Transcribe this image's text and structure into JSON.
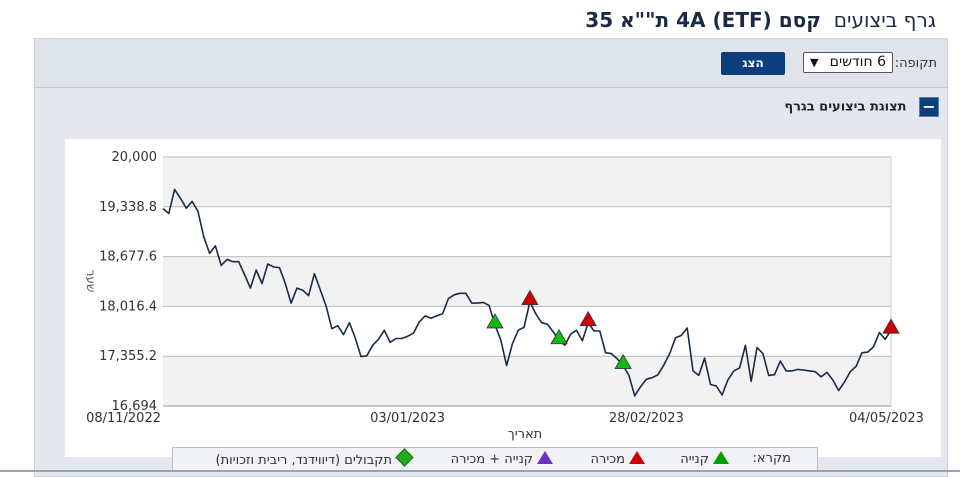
{
  "page": {
    "title_prefix": "גרף ביצועים",
    "title_main": "קסם (ETF) 4A ת\"\"א 35",
    "period_label": "תקופה:",
    "period_value": "6 חודשים",
    "show_button": "הצג",
    "section_title": "תצוגת ביצועים בגרף",
    "collapse_symbol": "−"
  },
  "legend": {
    "title": "מקרא:",
    "buy": "קנייה",
    "sell": "מכירה",
    "buy_sell": "קנייה + מכירה",
    "receipts": "תקבולים (דיווידנד, ריבית וזכויות)"
  },
  "colors": {
    "buy": "#11bb11",
    "sell": "#cc0000",
    "buy_sell": "#7030c0",
    "receipts": "#22aa22",
    "line": "#1a2a4a",
    "band": "#f2f2f2"
  },
  "chart_data": {
    "type": "line",
    "ylabel": "שער",
    "xlabel": "תאריך",
    "y_ticks": [
      "16,694",
      "17,355.2",
      "18,016.4",
      "18,677.6",
      "19,338.8",
      "20,000"
    ],
    "y_tick_values": [
      16694,
      17355.2,
      18016.4,
      18677.6,
      19338.8,
      20000
    ],
    "ylim": [
      16694,
      20000
    ],
    "x_ticks": [
      "08/11/2022",
      "03/01/2023",
      "28/02/2023",
      "04/05/2023"
    ],
    "x_tick_positions": [
      0,
      0.336,
      0.664,
      1
    ],
    "grid": true,
    "series": [
      {
        "values": [
          19315,
          19250,
          19570,
          19450,
          19320,
          19410,
          19280,
          18940,
          18720,
          18820,
          18560,
          18640,
          18610,
          18610,
          18440,
          18260,
          18500,
          18320,
          18580,
          18540,
          18530,
          18320,
          18060,
          18260,
          18230,
          18160,
          18450,
          18240,
          18020,
          17720,
          17760,
          17640,
          17800,
          17600,
          17350,
          17360,
          17500,
          17580,
          17700,
          17540,
          17590,
          17590,
          17620,
          17660,
          17810,
          17890,
          17860,
          17890,
          17920,
          18120,
          18170,
          18190,
          18190,
          18060,
          18060,
          18070,
          18030,
          17770,
          17570,
          17230,
          17520,
          17700,
          17740,
          18080,
          17920,
          17800,
          17780,
          17680,
          17560,
          17500,
          17650,
          17700,
          17560,
          17800,
          17690,
          17690,
          17400,
          17390,
          17320,
          17230,
          17100,
          16830,
          16950,
          17050,
          17070,
          17110,
          17240,
          17390,
          17600,
          17630,
          17730,
          17160,
          17100,
          17330,
          16980,
          16960,
          16840,
          17040,
          17160,
          17200,
          17500,
          17020,
          17470,
          17390,
          17100,
          17110,
          17290,
          17160,
          17160,
          17180,
          17170,
          17160,
          17150,
          17080,
          17140,
          17040,
          16900,
          17010,
          17150,
          17220,
          17400,
          17410,
          17480,
          17670,
          17580,
          17700
        ]
      }
    ],
    "markers": [
      {
        "type": "buy",
        "index": 57
      },
      {
        "type": "sell",
        "index": 63
      },
      {
        "type": "buy",
        "index": 68
      },
      {
        "type": "sell",
        "index": 73
      },
      {
        "type": "buy",
        "index": 79
      },
      {
        "type": "sell",
        "index": 125
      }
    ]
  }
}
